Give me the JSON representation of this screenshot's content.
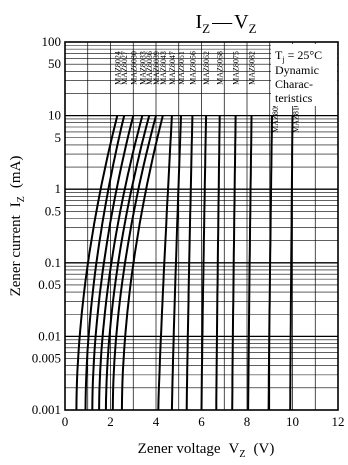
{
  "chart_data": {
    "type": "line",
    "title_main": "I",
    "title_sub_1": "Z",
    "title_dash": "—",
    "title_main_2": "V",
    "title_sub_2": "Z",
    "xlabel_text": "Zener voltage",
    "xlabel_symbol": "V",
    "xlabel_sub": "Z",
    "xlabel_unit": "(V)",
    "ylabel_text": "Zener current",
    "ylabel_symbol": "I",
    "ylabel_sub": "Z",
    "ylabel_unit": "(mA)",
    "xlim": [
      0,
      12
    ],
    "ylim": [
      0.001,
      100
    ],
    "yscale": "log",
    "x_ticks": [
      0,
      2,
      4,
      6,
      8,
      10,
      12
    ],
    "x_tick_labels": [
      "0",
      "2",
      "4",
      "6",
      "8",
      "10",
      "12"
    ],
    "y_ticks": [
      0.001,
      0.005,
      0.01,
      0.05,
      0.1,
      0.5,
      1,
      5,
      10,
      50,
      100
    ],
    "y_tick_labels": [
      "0.001",
      "0.005",
      "0.01",
      "0.05",
      "0.1",
      "0.5",
      "1",
      "5",
      "10",
      "50",
      "100"
    ],
    "annotation_lines": [
      "T_j = 25°C",
      "Dynamic",
      "Charac-",
      "teristics"
    ],
    "annotation_tj_symbol": "T",
    "annotation_tj_sub": "j",
    "annotation_tj_value": " = 25°C",
    "series": [
      {
        "name": "MAZ8024",
        "x_low": 0.5,
        "x_high": 2.3
      },
      {
        "name": "MAZ8027",
        "x_low": 0.9,
        "x_high": 2.6
      },
      {
        "name": "MAZ8030",
        "x_low": 1.2,
        "x_high": 3.0
      },
      {
        "name": "MAZ8033",
        "x_low": 1.5,
        "x_high": 3.4
      },
      {
        "name": "MAZ8036",
        "x_low": 1.8,
        "x_high": 3.7
      },
      {
        "name": "MAZ8039",
        "x_low": 2.1,
        "x_high": 4.0
      },
      {
        "name": "MAZ8043",
        "x_low": 2.5,
        "x_high": 4.3
      },
      {
        "name": "MAZ8047",
        "x_low": 4.1,
        "x_high": 4.7
      },
      {
        "name": "MAZ8051",
        "x_low": 4.7,
        "x_high": 5.1
      },
      {
        "name": "MAZ8056",
        "x_low": 5.35,
        "x_high": 5.6
      },
      {
        "name": "MAZ8062",
        "x_low": 6.0,
        "x_high": 6.2
      },
      {
        "name": "MAZ8068",
        "x_low": 6.65,
        "x_high": 6.8
      },
      {
        "name": "MAZ8075",
        "x_low": 7.35,
        "x_high": 7.5
      },
      {
        "name": "MAZ8082",
        "x_low": 8.05,
        "x_high": 8.2
      },
      {
        "name": "MAZ8091",
        "x_low": 8.95,
        "x_high": 9.1
      },
      {
        "name": "MAZ8100",
        "x_low": 9.9,
        "x_high": 10.0
      }
    ]
  }
}
